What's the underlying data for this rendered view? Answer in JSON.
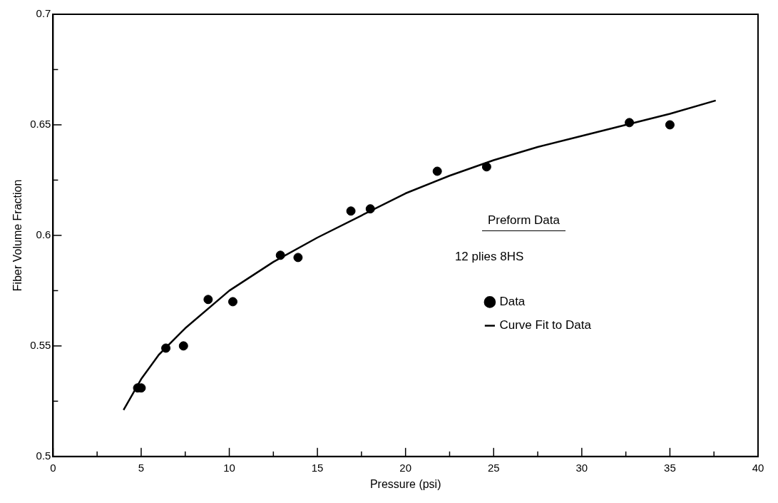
{
  "chart_data": {
    "type": "scatter",
    "xlabel": "Pressure (psi)",
    "ylabel": "Fiber Volume Fraction",
    "legend_title": "Preform Data",
    "legend": "center right",
    "grid": false,
    "marker": "circle",
    "annotations": [
      "12 plies 8HS"
    ],
    "xlim": [
      0,
      40
    ],
    "ylim": [
      0.5,
      0.7
    ],
    "xticks": [
      0,
      {
        "value": 2.5,
        "label": null
      },
      5,
      {
        "value": 7.5,
        "label": null
      },
      10,
      {
        "value": 12.5,
        "label": null
      },
      15,
      {
        "value": 17.5,
        "label": null
      },
      20,
      {
        "value": 22.5,
        "label": null
      },
      25,
      {
        "value": 27.5,
        "label": null
      },
      30,
      {
        "value": 32.5,
        "label": null
      },
      35,
      {
        "value": 37.5,
        "label": null
      },
      40
    ],
    "yticks": [
      0.5,
      {
        "value": 0.525,
        "label": null
      },
      0.55,
      {
        "value": 0.575,
        "label": null
      },
      0.6,
      {
        "value": 0.625,
        "label": null
      },
      0.65,
      {
        "value": 0.675,
        "label": null
      },
      0.7
    ],
    "series": [
      {
        "name": "Data",
        "color": "#000000",
        "x": [
          4.8,
          5.0,
          6.4,
          7.4,
          8.8,
          10.2,
          12.9,
          13.9,
          16.9,
          18.0,
          21.8,
          24.6,
          32.7,
          35.0
        ],
        "values": [
          0.531,
          0.531,
          0.549,
          0.55,
          0.571,
          0.57,
          0.591,
          0.59,
          0.611,
          0.612,
          0.629,
          0.631,
          0.651,
          0.65
        ]
      },
      {
        "name": "Curve Fit to Data",
        "type": "line",
        "color": "#000000",
        "marker": "none",
        "line_style": "solid",
        "x": [
          4,
          5,
          6,
          7.5,
          10,
          12.5,
          15,
          17.5,
          20,
          22.5,
          25,
          27.5,
          30,
          32.5,
          35,
          37.6
        ],
        "values": [
          0.521,
          0.535,
          0.546,
          0.558,
          0.575,
          0.588,
          0.599,
          0.609,
          0.619,
          0.627,
          0.634,
          0.64,
          0.645,
          0.65,
          0.655,
          0.661
        ]
      }
    ]
  }
}
